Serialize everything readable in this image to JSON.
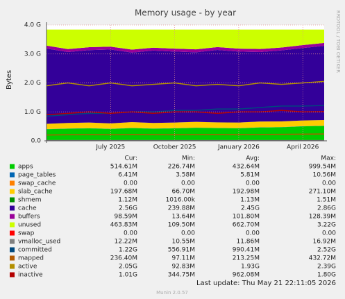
{
  "chart_data": {
    "type": "area",
    "title": "Memory usage - by year",
    "y_label": "Bytes",
    "watermark": "RRDTOOL / TOBI OETIKER",
    "x": [
      "2025-04",
      "2025-05",
      "2025-06",
      "2025-07",
      "2025-08",
      "2025-09",
      "2025-10",
      "2025-11",
      "2025-12",
      "2026-01",
      "2026-02",
      "2026-03",
      "2026-04",
      "2026-05"
    ],
    "xlim": [
      "2025-04",
      "2026-05"
    ],
    "xticks": [
      {
        "value": "2025-07",
        "label": "July 2025"
      },
      {
        "value": "2025-10",
        "label": "October 2025"
      },
      {
        "value": "2026-01",
        "label": "January 2026"
      },
      {
        "value": "2026-04",
        "label": "April 2026"
      }
    ],
    "ylim": [
      0,
      4000000000
    ],
    "yticks": [
      {
        "value": 0,
        "label": "0.0"
      },
      {
        "value": 1000000000,
        "label": "1.0 G"
      },
      {
        "value": 2000000000,
        "label": "2.0 G"
      },
      {
        "value": 3000000000,
        "label": "3.0 G"
      },
      {
        "value": 4000000000,
        "label": "4.0 G"
      }
    ],
    "grid": true,
    "series": [
      {
        "name": "apps",
        "color": "#00cc00",
        "style": "area",
        "values": [
          400000000,
          420000000,
          430000000,
          410000000,
          440000000,
          420000000,
          430000000,
          450000000,
          440000000,
          430000000,
          460000000,
          470000000,
          500000000,
          515000000
        ]
      },
      {
        "name": "page_tables",
        "color": "#0066b3",
        "style": "area",
        "values": [
          6000000,
          6000000,
          6000000,
          6000000,
          6000000,
          6000000,
          6000000,
          6000000,
          6000000,
          6000000,
          6000000,
          6000000,
          6000000,
          6000000
        ]
      },
      {
        "name": "swap_cache",
        "color": "#ff8000",
        "style": "area",
        "values": [
          0,
          0,
          0,
          0,
          0,
          0,
          0,
          0,
          0,
          0,
          0,
          0,
          0,
          0
        ]
      },
      {
        "name": "slab_cache",
        "color": "#ffcc00",
        "style": "area",
        "values": [
          180000000,
          190000000,
          195000000,
          185000000,
          200000000,
          190000000,
          195000000,
          200000000,
          190000000,
          195000000,
          200000000,
          195000000,
          198000000,
          198000000
        ]
      },
      {
        "name": "shmem",
        "color": "#008f00",
        "style": "area",
        "values": [
          1000000,
          1000000,
          1000000,
          1000000,
          1000000,
          1000000,
          1000000,
          1000000,
          1000000,
          1000000,
          1000000,
          1000000,
          1000000,
          1000000
        ]
      },
      {
        "name": "cache",
        "color": "#330099",
        "style": "area",
        "values": [
          2600000000,
          2450000000,
          2500000000,
          2550000000,
          2400000000,
          2500000000,
          2450000000,
          2400000000,
          2500000000,
          2450000000,
          2400000000,
          2450000000,
          2500000000,
          2560000000
        ]
      },
      {
        "name": "buffers",
        "color": "#990099",
        "style": "area",
        "values": [
          100000000,
          102000000,
          101000000,
          99000000,
          103000000,
          100000000,
          101000000,
          102000000,
          100000000,
          101000000,
          103000000,
          100000000,
          99000000,
          99000000
        ]
      },
      {
        "name": "unused",
        "color": "#ccff00",
        "style": "area",
        "values": [
          553000000,
          671000000,
          607000000,
          589000000,
          690000000,
          623000000,
          657000000,
          681000000,
          603000000,
          657000000,
          670000000,
          618000000,
          536000000,
          461000000
        ]
      },
      {
        "name": "swap",
        "color": "#ff0000",
        "style": "area",
        "values": [
          0,
          0,
          0,
          0,
          0,
          0,
          0,
          0,
          0,
          0,
          0,
          0,
          0,
          0
        ]
      },
      {
        "name": "vmalloc_used",
        "color": "#808080",
        "style": "line",
        "values": [
          11000000,
          11500000,
          12000000,
          11800000,
          12000000,
          11900000,
          12000000,
          12100000,
          11800000,
          12000000,
          12100000,
          12000000,
          12200000,
          12220000
        ]
      },
      {
        "name": "committed",
        "color": "#00487d",
        "style": "line",
        "values": [
          850000000,
          900000000,
          950000000,
          950000000,
          1000000000,
          1000000000,
          1050000000,
          1050000000,
          1100000000,
          1100000000,
          1150000000,
          1200000000,
          1200000000,
          1220000000
        ]
      },
      {
        "name": "mapped",
        "color": "#b35a00",
        "style": "line",
        "values": [
          200000000,
          210000000,
          215000000,
          210000000,
          220000000,
          215000000,
          210000000,
          215000000,
          220000000,
          215000000,
          220000000,
          225000000,
          230000000,
          236000000
        ]
      },
      {
        "name": "active",
        "color": "#b38f00",
        "style": "line",
        "values": [
          1900000000,
          2000000000,
          1900000000,
          2000000000,
          1900000000,
          1950000000,
          2000000000,
          1900000000,
          1950000000,
          1900000000,
          2000000000,
          1950000000,
          2000000000,
          2050000000
        ]
      },
      {
        "name": "inactive",
        "color": "#b30000",
        "style": "line",
        "values": [
          900000000,
          950000000,
          1000000000,
          950000000,
          1000000000,
          950000000,
          1000000000,
          1000000000,
          950000000,
          1000000000,
          1000000000,
          1050000000,
          1000000000,
          1010000000
        ]
      }
    ],
    "legend_table": {
      "columns": [
        "Cur:",
        "Min:",
        "Avg:",
        "Max:"
      ],
      "rows": [
        [
          "514.61M",
          "226.74M",
          "432.64M",
          "999.54M"
        ],
        [
          "6.41M",
          "3.58M",
          "5.81M",
          "10.56M"
        ],
        [
          "0.00",
          "0.00",
          "0.00",
          "0.00"
        ],
        [
          "197.68M",
          "66.70M",
          "192.98M",
          "271.10M"
        ],
        [
          "1.12M",
          "1016.00k",
          "1.13M",
          "1.51M"
        ],
        [
          "2.56G",
          "239.88M",
          "2.45G",
          "2.86G"
        ],
        [
          "98.59M",
          "13.64M",
          "101.80M",
          "128.39M"
        ],
        [
          "463.83M",
          "109.50M",
          "662.70M",
          "3.22G"
        ],
        [
          "0.00",
          "0.00",
          "0.00",
          "0.00"
        ],
        [
          "12.22M",
          "10.55M",
          "11.86M",
          "16.92M"
        ],
        [
          "1.22G",
          "556.91M",
          "990.41M",
          "2.52G"
        ],
        [
          "236.40M",
          "97.11M",
          "213.25M",
          "432.72M"
        ],
        [
          "2.05G",
          "92.83M",
          "1.93G",
          "2.39G"
        ],
        [
          "1.01G",
          "344.75M",
          "962.08M",
          "1.80G"
        ]
      ]
    },
    "last_update": "Last update: Thu May 21 22:11:05 2026",
    "version": "Munin 2.0.57"
  }
}
